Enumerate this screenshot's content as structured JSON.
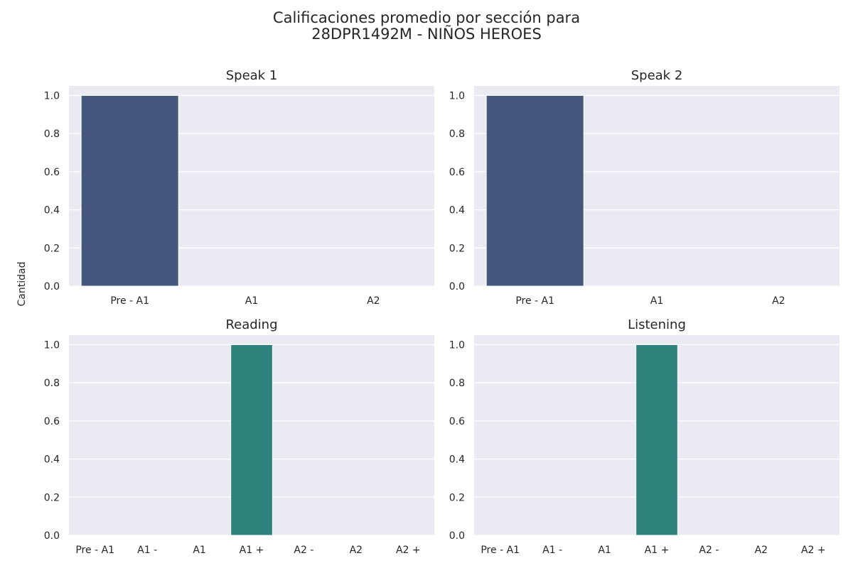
{
  "figure": {
    "title_line1": "Calificaciones promedio por sección para",
    "title_line2": "28DPR1492M - NIÑOS HEROES",
    "ylabel": "Cantidad"
  },
  "chart_data": [
    {
      "type": "bar",
      "title": "Speak 1",
      "categories": [
        "Pre - A1",
        "A1",
        "A2"
      ],
      "values": [
        1,
        0,
        0
      ],
      "ylim": [
        0,
        1.05
      ],
      "yticks": [
        "0.0",
        "0.2",
        "0.4",
        "0.6",
        "0.8",
        "1.0"
      ],
      "grid": true,
      "bar_color": "#46577e"
    },
    {
      "type": "bar",
      "title": "Speak 2",
      "categories": [
        "Pre - A1",
        "A1",
        "A2"
      ],
      "values": [
        1,
        0,
        0
      ],
      "ylim": [
        0,
        1.05
      ],
      "yticks": [
        "0.0",
        "0.2",
        "0.4",
        "0.6",
        "0.8",
        "1.0"
      ],
      "grid": true,
      "bar_color": "#46577e"
    },
    {
      "type": "bar",
      "title": "Reading",
      "categories": [
        "Pre - A1",
        "A1 -",
        "A1",
        "A1 +",
        "A2 -",
        "A2",
        "A2 +"
      ],
      "values": [
        0,
        0,
        0,
        1,
        0,
        0,
        0
      ],
      "ylim": [
        0,
        1.05
      ],
      "yticks": [
        "0.0",
        "0.2",
        "0.4",
        "0.6",
        "0.8",
        "1.0"
      ],
      "grid": true,
      "bar_color": "#2e837c"
    },
    {
      "type": "bar",
      "title": "Listening",
      "categories": [
        "Pre - A1",
        "A1 -",
        "A1",
        "A1 +",
        "A2 -",
        "A2",
        "A2 +"
      ],
      "values": [
        0,
        0,
        0,
        1,
        0,
        0,
        0
      ],
      "ylim": [
        0,
        1.05
      ],
      "yticks": [
        "0.0",
        "0.2",
        "0.4",
        "0.6",
        "0.8",
        "1.0"
      ],
      "grid": true,
      "bar_color": "#2e837c"
    }
  ]
}
